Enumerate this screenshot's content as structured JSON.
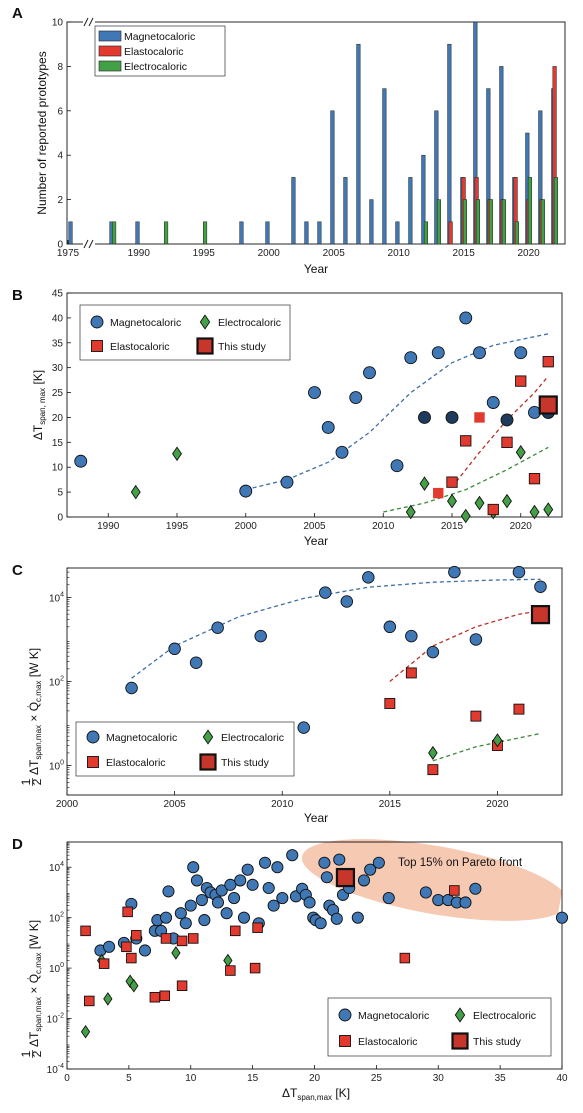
{
  "colors": {
    "magneto": "#3f78b5",
    "elasto": "#e23a2e",
    "electro": "#43a047",
    "this_study": "#c6362a",
    "pareto_region": "#f6c9b3"
  },
  "chart_data": [
    {
      "panel": "A",
      "type": "bar",
      "xlabel": "Year",
      "ylabel": "Number of reported prototypes",
      "xticks": [
        1975,
        1990,
        1995,
        2000,
        2005,
        2010,
        2015,
        2020
      ],
      "yticks": [
        0,
        2,
        4,
        6,
        8,
        10
      ],
      "ylim": [
        0,
        10
      ],
      "legend": [
        "Magnetocaloric",
        "Elastocaloric",
        "Electrocaloric"
      ],
      "series": [
        {
          "name": "Magnetocaloric",
          "x": [
            1976,
            1988,
            1990,
            1998,
            2000,
            2002,
            2003,
            2004,
            2005,
            2006,
            2007,
            2008,
            2009,
            2010,
            2011,
            2012,
            2013,
            2014,
            2015,
            2016,
            2017,
            2018,
            2019,
            2020,
            2021,
            2022
          ],
          "values": [
            1,
            1,
            1,
            1,
            1,
            3,
            1,
            1,
            6,
            3,
            9,
            2,
            7,
            1,
            3,
            4,
            6,
            9,
            3,
            10,
            7,
            8,
            3,
            5,
            6,
            7
          ]
        },
        {
          "name": "Elastocaloric",
          "x": [
            2014,
            2015,
            2016,
            2017,
            2018,
            2019,
            2020,
            2021,
            2022
          ],
          "values": [
            1,
            3,
            3,
            2,
            2,
            3,
            2,
            2,
            8
          ]
        },
        {
          "name": "Electrocaloric",
          "x": [
            1988,
            1992,
            1995,
            2012,
            2013,
            2015,
            2016,
            2017,
            2018,
            2019,
            2020,
            2021,
            2022
          ],
          "values": [
            1,
            1,
            1,
            1,
            2,
            2,
            2,
            2,
            2,
            1,
            3,
            2,
            3
          ]
        }
      ]
    },
    {
      "panel": "B",
      "type": "scatter",
      "xlabel": "Year",
      "ylabel_main": "ΔT",
      "ylabel_sub": "span, max",
      "ylabel_unit": "[K]",
      "xlim": [
        1987,
        2023
      ],
      "ylim": [
        0,
        45
      ],
      "xticks": [
        1990,
        1995,
        2000,
        2005,
        2010,
        2015,
        2020
      ],
      "yticks": [
        0,
        5,
        10,
        15,
        20,
        25,
        30,
        35,
        40,
        45
      ],
      "legend": [
        "Magnetocaloric",
        "Electrocaloric",
        "Elastocaloric",
        "This study"
      ],
      "series": [
        {
          "name": "Magnetocaloric",
          "points": [
            [
              1988,
              11.2
            ],
            [
              2000,
              5.2
            ],
            [
              2003,
              7
            ],
            [
              2005,
              25
            ],
            [
              2006,
              18
            ],
            [
              2007,
              13
            ],
            [
              2008,
              24
            ],
            [
              2009,
              29
            ],
            [
              2011,
              10.3
            ],
            [
              2012,
              32
            ],
            [
              2014,
              33
            ],
            [
              2016,
              40
            ],
            [
              2017,
              33
            ],
            [
              2018,
              23
            ],
            [
              2020,
              33
            ],
            [
              2021,
              21
            ],
            [
              2022,
              21
            ]
          ]
        },
        {
          "name": "Magnetocaloric (dark)",
          "points": [
            [
              2013,
              20
            ],
            [
              2015,
              20
            ],
            [
              2019,
              19.5
            ],
            [
              2022,
              21
            ]
          ]
        },
        {
          "name": "Electrocaloric",
          "points": [
            [
              1992,
              5
            ],
            [
              1995,
              12.7
            ],
            [
              2012,
              1
            ],
            [
              2013,
              6.7
            ],
            [
              2015,
              3.2
            ],
            [
              2016,
              0.2
            ],
            [
              2017,
              2.8
            ],
            [
              2018,
              1
            ],
            [
              2019,
              3.2
            ],
            [
              2020,
              13
            ],
            [
              2021,
              1
            ],
            [
              2022,
              1.5
            ]
          ]
        },
        {
          "name": "Elastocaloric",
          "points": [
            [
              2014,
              4.8
            ],
            [
              2015,
              7
            ],
            [
              2016,
              15.3
            ],
            [
              2017,
              20
            ],
            [
              2018,
              1.5
            ],
            [
              2019,
              15
            ],
            [
              2020,
              27.3
            ],
            [
              2021,
              7.7
            ],
            [
              2022,
              31.2
            ]
          ]
        },
        {
          "name": "This study",
          "points": [
            [
              2022,
              22.5
            ]
          ]
        }
      ],
      "trend_magneto": [
        [
          2000,
          5.5
        ],
        [
          2003,
          7.5
        ],
        [
          2006,
          11
        ],
        [
          2009,
          17
        ],
        [
          2012,
          25
        ],
        [
          2015,
          31
        ],
        [
          2018,
          34.5
        ],
        [
          2022,
          36.8
        ]
      ],
      "trend_elasto": [
        [
          2015,
          6
        ],
        [
          2017,
          13
        ],
        [
          2019,
          19.5
        ],
        [
          2021,
          25
        ],
        [
          2022,
          28.3
        ]
      ],
      "trend_electro": [
        [
          2010,
          1
        ],
        [
          2013,
          2.8
        ],
        [
          2016,
          5.5
        ],
        [
          2019,
          9.5
        ],
        [
          2022,
          14
        ]
      ]
    },
    {
      "panel": "C",
      "type": "scatter",
      "xlabel": "Year",
      "xlim": [
        2000,
        2023
      ],
      "yscale": "log",
      "ylim_exp": [
        -0.7,
        4.7
      ],
      "xticks": [
        2000,
        2005,
        2010,
        2015,
        2020
      ],
      "yticks": [
        "10^0",
        "10^2",
        "10^4"
      ],
      "legend": [
        "Magnetocaloric",
        "Electrocaloric",
        "Elastocaloric",
        "This study"
      ],
      "series": [
        {
          "name": "Magnetocaloric",
          "points": [
            [
              2003,
              70
            ],
            [
              2005,
              600
            ],
            [
              2006,
              280
            ],
            [
              2007,
              1900
            ],
            [
              2009,
              1200
            ],
            [
              2011,
              8
            ],
            [
              2012,
              13000
            ],
            [
              2013,
              8000
            ],
            [
              2014,
              30000
            ],
            [
              2015,
              2000
            ],
            [
              2016,
              1200
            ],
            [
              2017,
              500
            ],
            [
              2018,
              40000
            ],
            [
              2019,
              1000
            ],
            [
              2021,
              40000
            ],
            [
              2022,
              18000
            ]
          ]
        },
        {
          "name": "Elastocaloric",
          "points": [
            [
              2015,
              30
            ],
            [
              2016,
              160
            ],
            [
              2017,
              0.8
            ],
            [
              2019,
              15
            ],
            [
              2020,
              3
            ],
            [
              2021,
              22
            ]
          ]
        },
        {
          "name": "Electrocaloric",
          "points": [
            [
              2017,
              2
            ],
            [
              2020,
              4
            ]
          ]
        },
        {
          "name": "This study",
          "points": [
            [
              2022,
              3900
            ]
          ]
        }
      ],
      "trend_magneto": [
        [
          2003,
          120
        ],
        [
          2005,
          700
        ],
        [
          2008,
          3500
        ],
        [
          2011,
          9500
        ],
        [
          2014,
          17500
        ],
        [
          2017,
          23000
        ],
        [
          2020,
          26000
        ],
        [
          2022,
          27000
        ]
      ],
      "trend_elasto": [
        [
          2015,
          100
        ],
        [
          2017,
          700
        ],
        [
          2019,
          2000
        ],
        [
          2021,
          4000
        ],
        [
          2022,
          4800
        ]
      ],
      "trend_electro": [
        [
          2017,
          1.3
        ],
        [
          2019,
          2.8
        ],
        [
          2022,
          5.8
        ]
      ]
    },
    {
      "panel": "D",
      "type": "scatter",
      "xlabel_main": "ΔT",
      "xlabel_sub": "span,max",
      "xlabel_unit": "[K]",
      "xlim": [
        0,
        40
      ],
      "yscale": "log",
      "ylim_exp": [
        -4,
        5
      ],
      "xticks": [
        0,
        5,
        10,
        15,
        20,
        25,
        30,
        35,
        40
      ],
      "yticks": [
        "10^-4",
        "10^-2",
        "10^0",
        "10^2",
        "10^4"
      ],
      "annotation": "Top 15% on Pareto front",
      "legend": [
        "Magnetocaloric",
        "Electrocaloric",
        "Elastocaloric",
        "This study"
      ],
      "series": [
        {
          "name": "Magnetocaloric",
          "points": [
            [
              2.7,
              5
            ],
            [
              3.4,
              7
            ],
            [
              4.6,
              10
            ],
            [
              5.2,
              350
            ],
            [
              5.6,
              15
            ],
            [
              6.3,
              5
            ],
            [
              7.1,
              30
            ],
            [
              7.3,
              80
            ],
            [
              7.6,
              30
            ],
            [
              8,
              100
            ],
            [
              8.2,
              1100
            ],
            [
              8.6,
              15
            ],
            [
              9.2,
              150
            ],
            [
              9.6,
              60
            ],
            [
              10,
              300
            ],
            [
              10.2,
              10000
            ],
            [
              10.5,
              3000
            ],
            [
              10.9,
              500
            ],
            [
              11.1,
              80
            ],
            [
              11.3,
              1500
            ],
            [
              11.6,
              1000
            ],
            [
              12,
              800
            ],
            [
              12.2,
              400
            ],
            [
              12.5,
              1200
            ],
            [
              12.9,
              150
            ],
            [
              13.2,
              2000
            ],
            [
              13.5,
              600
            ],
            [
              14,
              3000
            ],
            [
              14.3,
              100
            ],
            [
              14.6,
              8000
            ],
            [
              15,
              2000
            ],
            [
              15.5,
              60
            ],
            [
              16,
              15000
            ],
            [
              16.3,
              1500
            ],
            [
              16.7,
              300
            ],
            [
              17,
              10000
            ],
            [
              17.4,
              600
            ],
            [
              18.2,
              30000
            ],
            [
              18.5,
              700
            ],
            [
              19,
              1400
            ],
            [
              19.3,
              800
            ],
            [
              19.6,
              400
            ],
            [
              19.9,
              100
            ],
            [
              20.1,
              80
            ],
            [
              20.5,
              60
            ],
            [
              20.8,
              15000
            ],
            [
              21,
              4000
            ],
            [
              21.2,
              300
            ],
            [
              21.5,
              200
            ],
            [
              21.8,
              90
            ],
            [
              22,
              20000
            ],
            [
              22.3,
              800
            ],
            [
              22.8,
              1500
            ],
            [
              23.5,
              100
            ],
            [
              24,
              3000
            ],
            [
              24.5,
              8000
            ],
            [
              25.2,
              15000
            ],
            [
              26,
              600
            ],
            [
              29,
              1000
            ],
            [
              30,
              500
            ],
            [
              30.8,
              500
            ],
            [
              31.5,
              400
            ],
            [
              32.2,
              400
            ],
            [
              33,
              1400
            ],
            [
              40,
              100
            ]
          ]
        },
        {
          "name": "Electrocaloric",
          "points": [
            [
              1.5,
              0.003
            ],
            [
              2.8,
              2
            ],
            [
              3.3,
              0.06
            ],
            [
              5.1,
              0.3
            ],
            [
              5.4,
              0.2
            ],
            [
              8.8,
              4
            ],
            [
              13,
              2
            ]
          ]
        },
        {
          "name": "Elastocaloric",
          "points": [
            [
              1.5,
              30
            ],
            [
              1.8,
              0.05
            ],
            [
              3,
              1.5
            ],
            [
              4.8,
              7
            ],
            [
              4.9,
              170
            ],
            [
              5.2,
              2.5
            ],
            [
              5.6,
              20
            ],
            [
              7.1,
              0.07
            ],
            [
              7.9,
              0.08
            ],
            [
              8,
              15
            ],
            [
              9.3,
              0.2
            ],
            [
              9.3,
              12
            ],
            [
              10.2,
              15
            ],
            [
              13.2,
              0.8
            ],
            [
              13.6,
              30
            ],
            [
              15.2,
              1
            ],
            [
              15.4,
              40
            ],
            [
              27.3,
              2.5
            ],
            [
              31.3,
              1200
            ]
          ]
        },
        {
          "name": "This study",
          "points": [
            [
              22.5,
              3900
            ]
          ]
        }
      ]
    }
  ]
}
